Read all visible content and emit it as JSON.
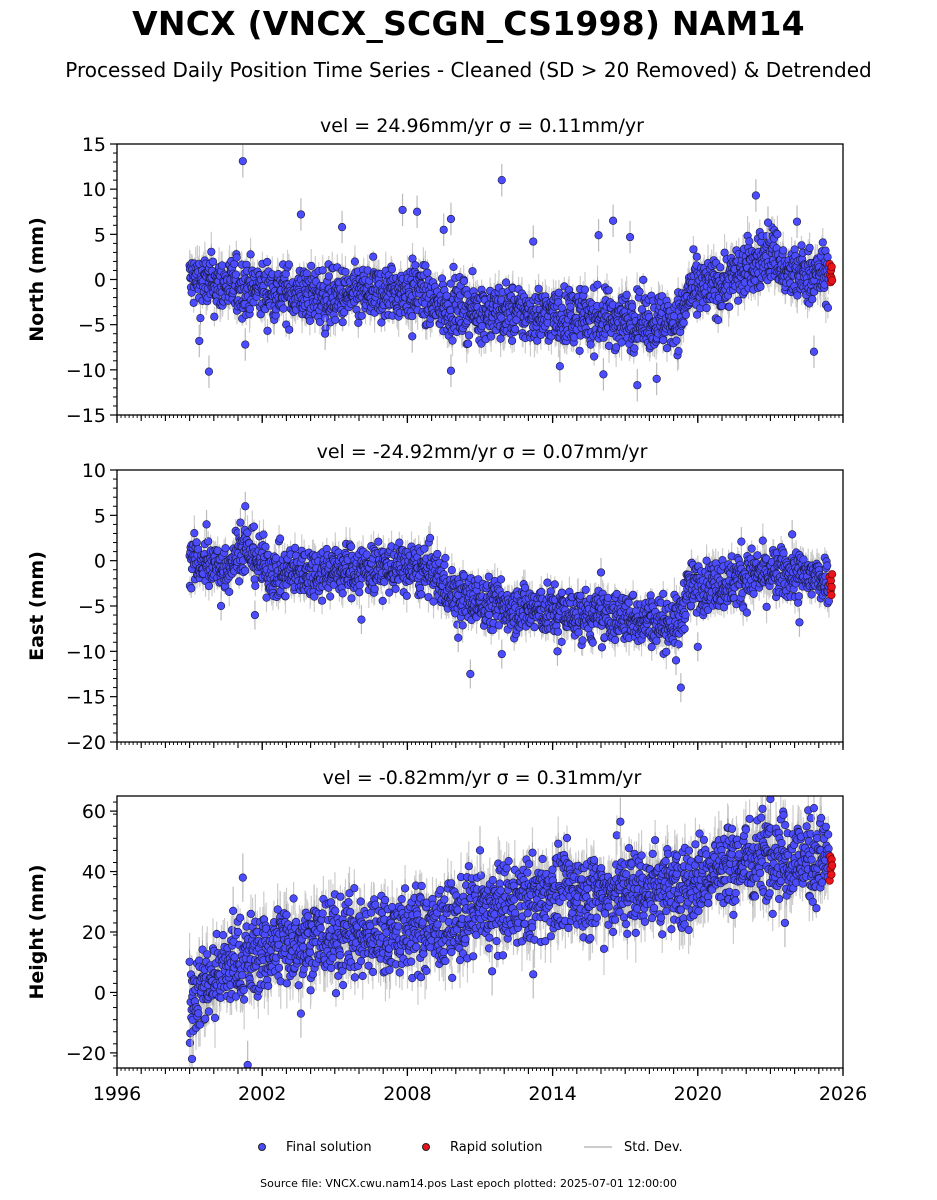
{
  "figure": {
    "title": "VNCX (VNCX_SCGN_CS1998) NAM14",
    "subtitle": "Processed Daily Position Time Series - Cleaned (SD > 20 Removed) & Detrended",
    "source_note": "Source file: VNCX.cwu.nam14.pos  Last epoch plotted: 2025-07-01 12:00:00",
    "legend": {
      "final": "Final solution",
      "rapid": "Rapid solution",
      "std": "Std. Dev."
    },
    "colors": {
      "final": "#4b4bff",
      "rapid": "#e8141b",
      "std": "#bbbbbb",
      "edge": "#1a1a3a"
    }
  },
  "chart_data": [
    {
      "type": "scatter",
      "panel": "north",
      "title": "vel = 24.96mm/yr   σ = 0.11mm/yr",
      "ylabel": "North (mm)",
      "xlim": [
        1996,
        2026
      ],
      "ylim": [
        -15,
        15
      ],
      "yticks": [
        -15,
        -10,
        -5,
        0,
        5,
        10,
        15
      ],
      "xticks": [
        1996,
        2002,
        2008,
        2014,
        2020,
        2026
      ],
      "xtick_labels_shown": false,
      "trend": [
        [
          1999.0,
          0.0
        ],
        [
          2000.0,
          -0.5
        ],
        [
          2001.5,
          -1.0
        ],
        [
          2003.0,
          -1.5
        ],
        [
          2005.0,
          -2.0
        ],
        [
          2008.5,
          -1.2
        ],
        [
          2009.0,
          -2.8
        ],
        [
          2011.0,
          -3.5
        ],
        [
          2014.0,
          -4.0
        ],
        [
          2017.0,
          -4.5
        ],
        [
          2019.3,
          -4.6
        ],
        [
          2019.6,
          -1.5
        ],
        [
          2021.0,
          -0.5
        ],
        [
          2022.5,
          2.0
        ],
        [
          2023.2,
          3.0
        ],
        [
          2023.6,
          0.5
        ],
        [
          2025.0,
          0.5
        ],
        [
          2025.5,
          0.8
        ]
      ],
      "band": 1.8,
      "outliers": [
        [
          2001.2,
          13.1
        ],
        [
          2011.9,
          11.0
        ],
        [
          2022.4,
          9.3
        ],
        [
          2003.6,
          7.2
        ],
        [
          2007.8,
          7.7
        ],
        [
          2008.4,
          7.5
        ],
        [
          2009.8,
          6.7
        ],
        [
          2009.5,
          5.5
        ],
        [
          2016.5,
          6.5
        ],
        [
          2015.9,
          4.9
        ],
        [
          2017.2,
          4.7
        ],
        [
          2022.9,
          6.3
        ],
        [
          2024.1,
          6.4
        ],
        [
          1999.8,
          -10.2
        ],
        [
          2009.8,
          -10.1
        ],
        [
          2016.1,
          -10.5
        ],
        [
          2017.5,
          -11.7
        ],
        [
          2018.3,
          -11.0
        ],
        [
          2014.3,
          -9.6
        ],
        [
          2024.8,
          -8.0
        ],
        [
          2001.3,
          -7.2
        ],
        [
          1999.4,
          -6.8
        ],
        [
          2008.2,
          -6.3
        ],
        [
          2013.2,
          4.2
        ],
        [
          2005.3,
          5.8
        ],
        [
          2004.6,
          -6.0
        ]
      ],
      "rapid": [
        [
          2025.45,
          1.7
        ],
        [
          2025.47,
          0.5
        ],
        [
          2025.49,
          -0.3
        ],
        [
          2025.5,
          1.0
        ],
        [
          2025.52,
          0.2
        ],
        [
          2025.53,
          1.4
        ],
        [
          2025.55,
          -0.1
        ]
      ]
    },
    {
      "type": "scatter",
      "panel": "east",
      "title": "vel = -24.92mm/yr   σ = 0.07mm/yr",
      "ylabel": "East (mm)",
      "xlim": [
        1996,
        2026
      ],
      "ylim": [
        -20,
        10
      ],
      "yticks": [
        -20,
        -15,
        -10,
        -5,
        0,
        5,
        10
      ],
      "xticks": [
        1996,
        2002,
        2008,
        2014,
        2020,
        2026
      ],
      "xtick_labels_shown": false,
      "trend": [
        [
          1999.0,
          0.0
        ],
        [
          2000.5,
          -0.8
        ],
        [
          2001.2,
          1.5
        ],
        [
          2002.5,
          -1.5
        ],
        [
          2005.0,
          -1.0
        ],
        [
          2008.0,
          -0.8
        ],
        [
          2009.0,
          -1.2
        ],
        [
          2010.0,
          -4.0
        ],
        [
          2012.0,
          -5.0
        ],
        [
          2015.0,
          -6.0
        ],
        [
          2018.0,
          -6.5
        ],
        [
          2019.2,
          -7.0
        ],
        [
          2019.6,
          -3.0
        ],
        [
          2021.0,
          -2.5
        ],
        [
          2022.5,
          -1.5
        ],
        [
          2023.5,
          -1.5
        ],
        [
          2025.5,
          -2.0
        ]
      ],
      "band": 1.6,
      "outliers": [
        [
          2001.3,
          6.0
        ],
        [
          2001.1,
          4.2
        ],
        [
          1999.7,
          4.0
        ],
        [
          2010.6,
          -12.5
        ],
        [
          2011.9,
          -10.3
        ],
        [
          2019.3,
          -14.0
        ],
        [
          2019.1,
          -11.0
        ],
        [
          2021.8,
          2.1
        ],
        [
          2023.9,
          2.9
        ],
        [
          2016.0,
          -1.3
        ],
        [
          2024.2,
          -6.8
        ],
        [
          2000.3,
          -5.0
        ],
        [
          2001.7,
          -6.0
        ],
        [
          2006.1,
          -6.5
        ],
        [
          2010.1,
          -8.5
        ],
        [
          2020.0,
          -9.5
        ],
        [
          2014.2,
          -10.0
        ]
      ],
      "rapid": [
        [
          2025.45,
          -1.8
        ],
        [
          2025.47,
          -2.6
        ],
        [
          2025.49,
          -3.3
        ],
        [
          2025.5,
          -2.2
        ],
        [
          2025.52,
          -3.8
        ],
        [
          2025.53,
          -2.9
        ],
        [
          2025.55,
          -1.5
        ]
      ]
    },
    {
      "type": "scatter",
      "panel": "height",
      "title": "vel = -0.82mm/yr   σ = 0.31mm/yr",
      "ylabel": "Height (mm)",
      "xlim": [
        1996,
        2026
      ],
      "ylim": [
        -25,
        65
      ],
      "yticks": [
        -20,
        0,
        20,
        40,
        60
      ],
      "xticks": [
        1996,
        2002,
        2008,
        2014,
        2020,
        2026
      ],
      "xtick_labels_shown": true,
      "trend": [
        [
          1999.0,
          -2.0
        ],
        [
          1999.5,
          2.0
        ],
        [
          2000.0,
          5.0
        ],
        [
          2001.0,
          10.0
        ],
        [
          2002.0,
          13.0
        ],
        [
          2003.0,
          17.0
        ],
        [
          2005.0,
          18.0
        ],
        [
          2008.0,
          20.0
        ],
        [
          2009.5,
          21.0
        ],
        [
          2010.5,
          26.0
        ],
        [
          2012.0,
          28.0
        ],
        [
          2014.0,
          33.0
        ],
        [
          2016.0,
          33.0
        ],
        [
          2018.0,
          35.0
        ],
        [
          2019.5,
          35.0
        ],
        [
          2020.5,
          40.0
        ],
        [
          2022.0,
          43.0
        ],
        [
          2023.0,
          47.0
        ],
        [
          2024.0,
          44.0
        ],
        [
          2025.5,
          44.0
        ]
      ],
      "band": 8.0,
      "outliers": [
        [
          1999.1,
          -22.0
        ],
        [
          2001.4,
          -24.0
        ],
        [
          2001.2,
          38.0
        ],
        [
          2013.2,
          6.0
        ],
        [
          2011.0,
          47.0
        ],
        [
          2016.8,
          56.5
        ],
        [
          2023.0,
          64.0
        ],
        [
          2024.8,
          61.0
        ],
        [
          2023.6,
          23.0
        ],
        [
          2003.6,
          -7.0
        ],
        [
          2000.8,
          27.0
        ],
        [
          2011.5,
          7.0
        ]
      ],
      "rapid": [
        [
          2025.45,
          37.0
        ],
        [
          2025.47,
          45.0
        ],
        [
          2025.49,
          41.0
        ],
        [
          2025.5,
          43.5
        ],
        [
          2025.52,
          39.0
        ],
        [
          2025.53,
          44.0
        ],
        [
          2025.55,
          42.0
        ]
      ]
    }
  ]
}
